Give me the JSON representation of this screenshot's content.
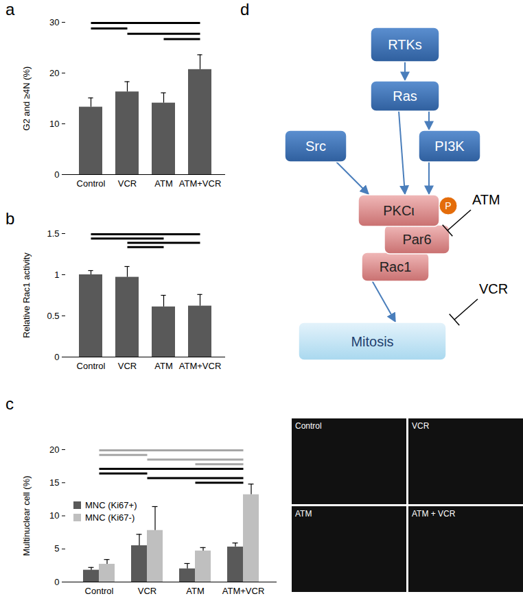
{
  "chart_data": [
    {
      "type": "bar",
      "title": "a",
      "y_label": "G2 and ≥4N (%)",
      "categories": [
        "Control",
        "VCR",
        "ATM",
        "ATM+VCR"
      ],
      "values": [
        13.3,
        16.3,
        14.1,
        20.7
      ],
      "errors": [
        1.8,
        2.0,
        2.0,
        2.9
      ],
      "color": "#595959",
      "ylim": [
        0,
        30
      ],
      "yticks": [
        0,
        10,
        20,
        30
      ],
      "significance": [
        [
          "Control",
          "ATM+VCR"
        ],
        [
          "Control",
          "VCR"
        ],
        [
          "VCR",
          "ATM+VCR"
        ],
        [
          "ATM",
          "ATM+VCR"
        ]
      ]
    },
    {
      "type": "bar",
      "title": "b",
      "y_label": "Relative Rac1 activity",
      "categories": [
        "Control",
        "VCR",
        "ATM",
        "ATM+VCR"
      ],
      "values": [
        1.0,
        0.97,
        0.61,
        0.62
      ],
      "errors": [
        0.05,
        0.13,
        0.14,
        0.14
      ],
      "color": "#595959",
      "ylim": [
        0,
        1.5
      ],
      "yticks": [
        0,
        0.5,
        1,
        1.5
      ],
      "significance": [
        [
          "Control",
          "ATM+VCR"
        ],
        [
          "Control",
          "ATM"
        ],
        [
          "VCR",
          "ATM+VCR"
        ],
        [
          "VCR",
          "ATM"
        ]
      ]
    },
    {
      "type": "bar",
      "title": "c",
      "y_label": "Multinuclear cell (%)",
      "categories": [
        "Control",
        "VCR",
        "ATM",
        "ATM+VCR"
      ],
      "series": [
        {
          "name": "MNC (Ki67+)",
          "color": "#595959",
          "values": [
            1.8,
            5.5,
            2.0,
            5.3
          ],
          "errors": [
            0.4,
            1.7,
            0.8,
            0.6
          ],
          "significance": [
            [
              "Control",
              "ATM+VCR"
            ],
            [
              "Control",
              "VCR"
            ],
            [
              "VCR",
              "ATM+VCR"
            ],
            [
              "ATM",
              "ATM+VCR"
            ]
          ]
        },
        {
          "name": "MNC (Ki67-)",
          "color": "#bfbfbf",
          "values": [
            2.7,
            7.8,
            4.7,
            13.2
          ],
          "errors": [
            0.7,
            3.6,
            0.5,
            1.6
          ],
          "significance": [
            [
              "Control",
              "ATM+VCR"
            ],
            [
              "Control",
              "VCR"
            ],
            [
              "VCR",
              "ATM+VCR"
            ],
            [
              "ATM",
              "ATM+VCR"
            ]
          ]
        }
      ],
      "ylim": [
        0,
        20
      ],
      "yticks": [
        0,
        5,
        10,
        15,
        20
      ],
      "legend": "upper left"
    }
  ],
  "image_labels": [
    "Control",
    "VCR",
    "ATM",
    "ATM + VCR"
  ],
  "diagram": {
    "title": "d",
    "nodes": [
      "RTKs",
      "Ras",
      "Src",
      "PI3K",
      "PKCι",
      "Par6",
      "Rac1",
      "Mitosis"
    ],
    "edges": [
      [
        0,
        1
      ],
      [
        1,
        4
      ],
      [
        1,
        3
      ],
      [
        2,
        4
      ],
      [
        3,
        4
      ],
      [
        6,
        7
      ]
    ],
    "phospho": {
      "label": "P",
      "target": 4
    },
    "inhibitors": [
      {
        "label": "ATM",
        "target": 4
      },
      {
        "label": "VCR",
        "target": 7
      }
    ]
  }
}
